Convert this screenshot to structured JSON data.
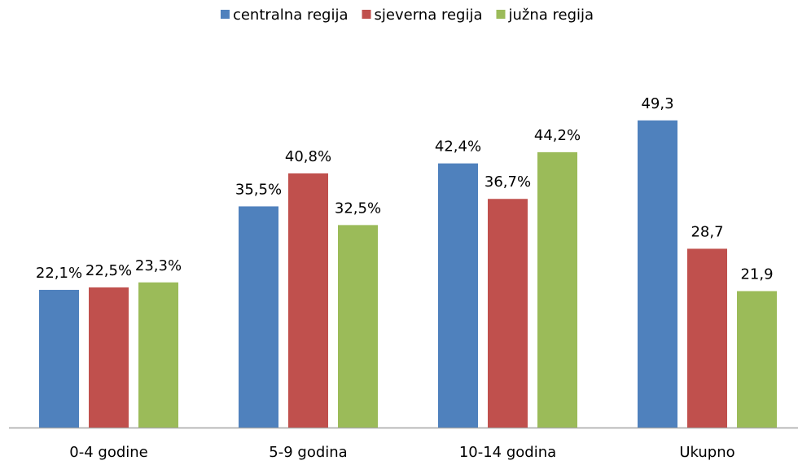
{
  "chart_data": {
    "type": "bar",
    "categories": [
      "0-4 godine",
      "5-9 godina",
      "10-14 godina",
      "Ukupno"
    ],
    "series": [
      {
        "name": "centralna regija",
        "color": "#4f81bd",
        "values": [
          22.1,
          35.5,
          42.4,
          49.3
        ],
        "value_labels": [
          "22,1%",
          "35,5%",
          "42,4%",
          "49,3"
        ]
      },
      {
        "name": "sjeverna regija",
        "color": "#c0504d",
        "values": [
          22.5,
          40.8,
          36.7,
          28.7
        ],
        "value_labels": [
          "22,5%",
          "40,8%",
          "36,7%",
          "28,7"
        ]
      },
      {
        "name": "južna regija",
        "color": "#9bbb59",
        "values": [
          23.3,
          32.5,
          44.2,
          21.9
        ],
        "value_labels": [
          "23,3%",
          "32,5%",
          "44,2%",
          "21,9"
        ]
      }
    ],
    "ylim": [
      0,
      60
    ],
    "legend": "top"
  }
}
